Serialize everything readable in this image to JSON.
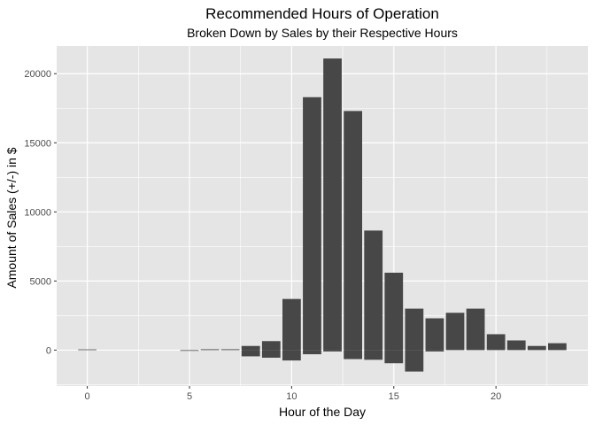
{
  "chart_data": {
    "type": "bar",
    "title": "Recommended Hours of Operation",
    "subtitle": "Broken Down by Sales by their Respective Hours",
    "xlabel": "Hour of the Day",
    "ylabel": "Amount of Sales (+/-) in $",
    "xlim": [
      -1.5,
      24.5
    ],
    "ylim": [
      -2600,
      22000
    ],
    "x_ticks": [
      0,
      5,
      10,
      15,
      20
    ],
    "y_ticks": [
      0,
      5000,
      10000,
      15000,
      20000
    ],
    "grid": true,
    "legend": "none",
    "bar_color": "#474747",
    "panel_background": "#e5e5e5",
    "grid_color": "#ffffff",
    "series": [
      {
        "bars": [
          {
            "hour": 0,
            "value": 50
          },
          {
            "hour": 5,
            "value": 0
          },
          {
            "hour": 6,
            "value": 60
          },
          {
            "hour": 7,
            "value": 60
          },
          {
            "hour": 8,
            "value": 300
          },
          {
            "hour": 8,
            "value": -450
          },
          {
            "hour": 9,
            "value": 650
          },
          {
            "hour": 9,
            "value": -550
          },
          {
            "hour": 10,
            "value": 3700
          },
          {
            "hour": 10,
            "value": -750
          },
          {
            "hour": 11,
            "value": 18300
          },
          {
            "hour": 11,
            "value": -300
          },
          {
            "hour": 12,
            "value": 21100
          },
          {
            "hour": 12,
            "value": -100
          },
          {
            "hour": 13,
            "value": 17300
          },
          {
            "hour": 13,
            "value": -650
          },
          {
            "hour": 14,
            "value": 8650
          },
          {
            "hour": 14,
            "value": -700
          },
          {
            "hour": 15,
            "value": 5600
          },
          {
            "hour": 15,
            "value": -950
          },
          {
            "hour": 16,
            "value": 3000
          },
          {
            "hour": 16,
            "value": -1550
          },
          {
            "hour": 17,
            "value": 2300
          },
          {
            "hour": 17,
            "value": -100
          },
          {
            "hour": 18,
            "value": 2700
          },
          {
            "hour": 19,
            "value": 3000
          },
          {
            "hour": 20,
            "value": 1150
          },
          {
            "hour": 21,
            "value": 700
          },
          {
            "hour": 22,
            "value": 300
          },
          {
            "hour": 23,
            "value": 500
          }
        ]
      }
    ]
  }
}
